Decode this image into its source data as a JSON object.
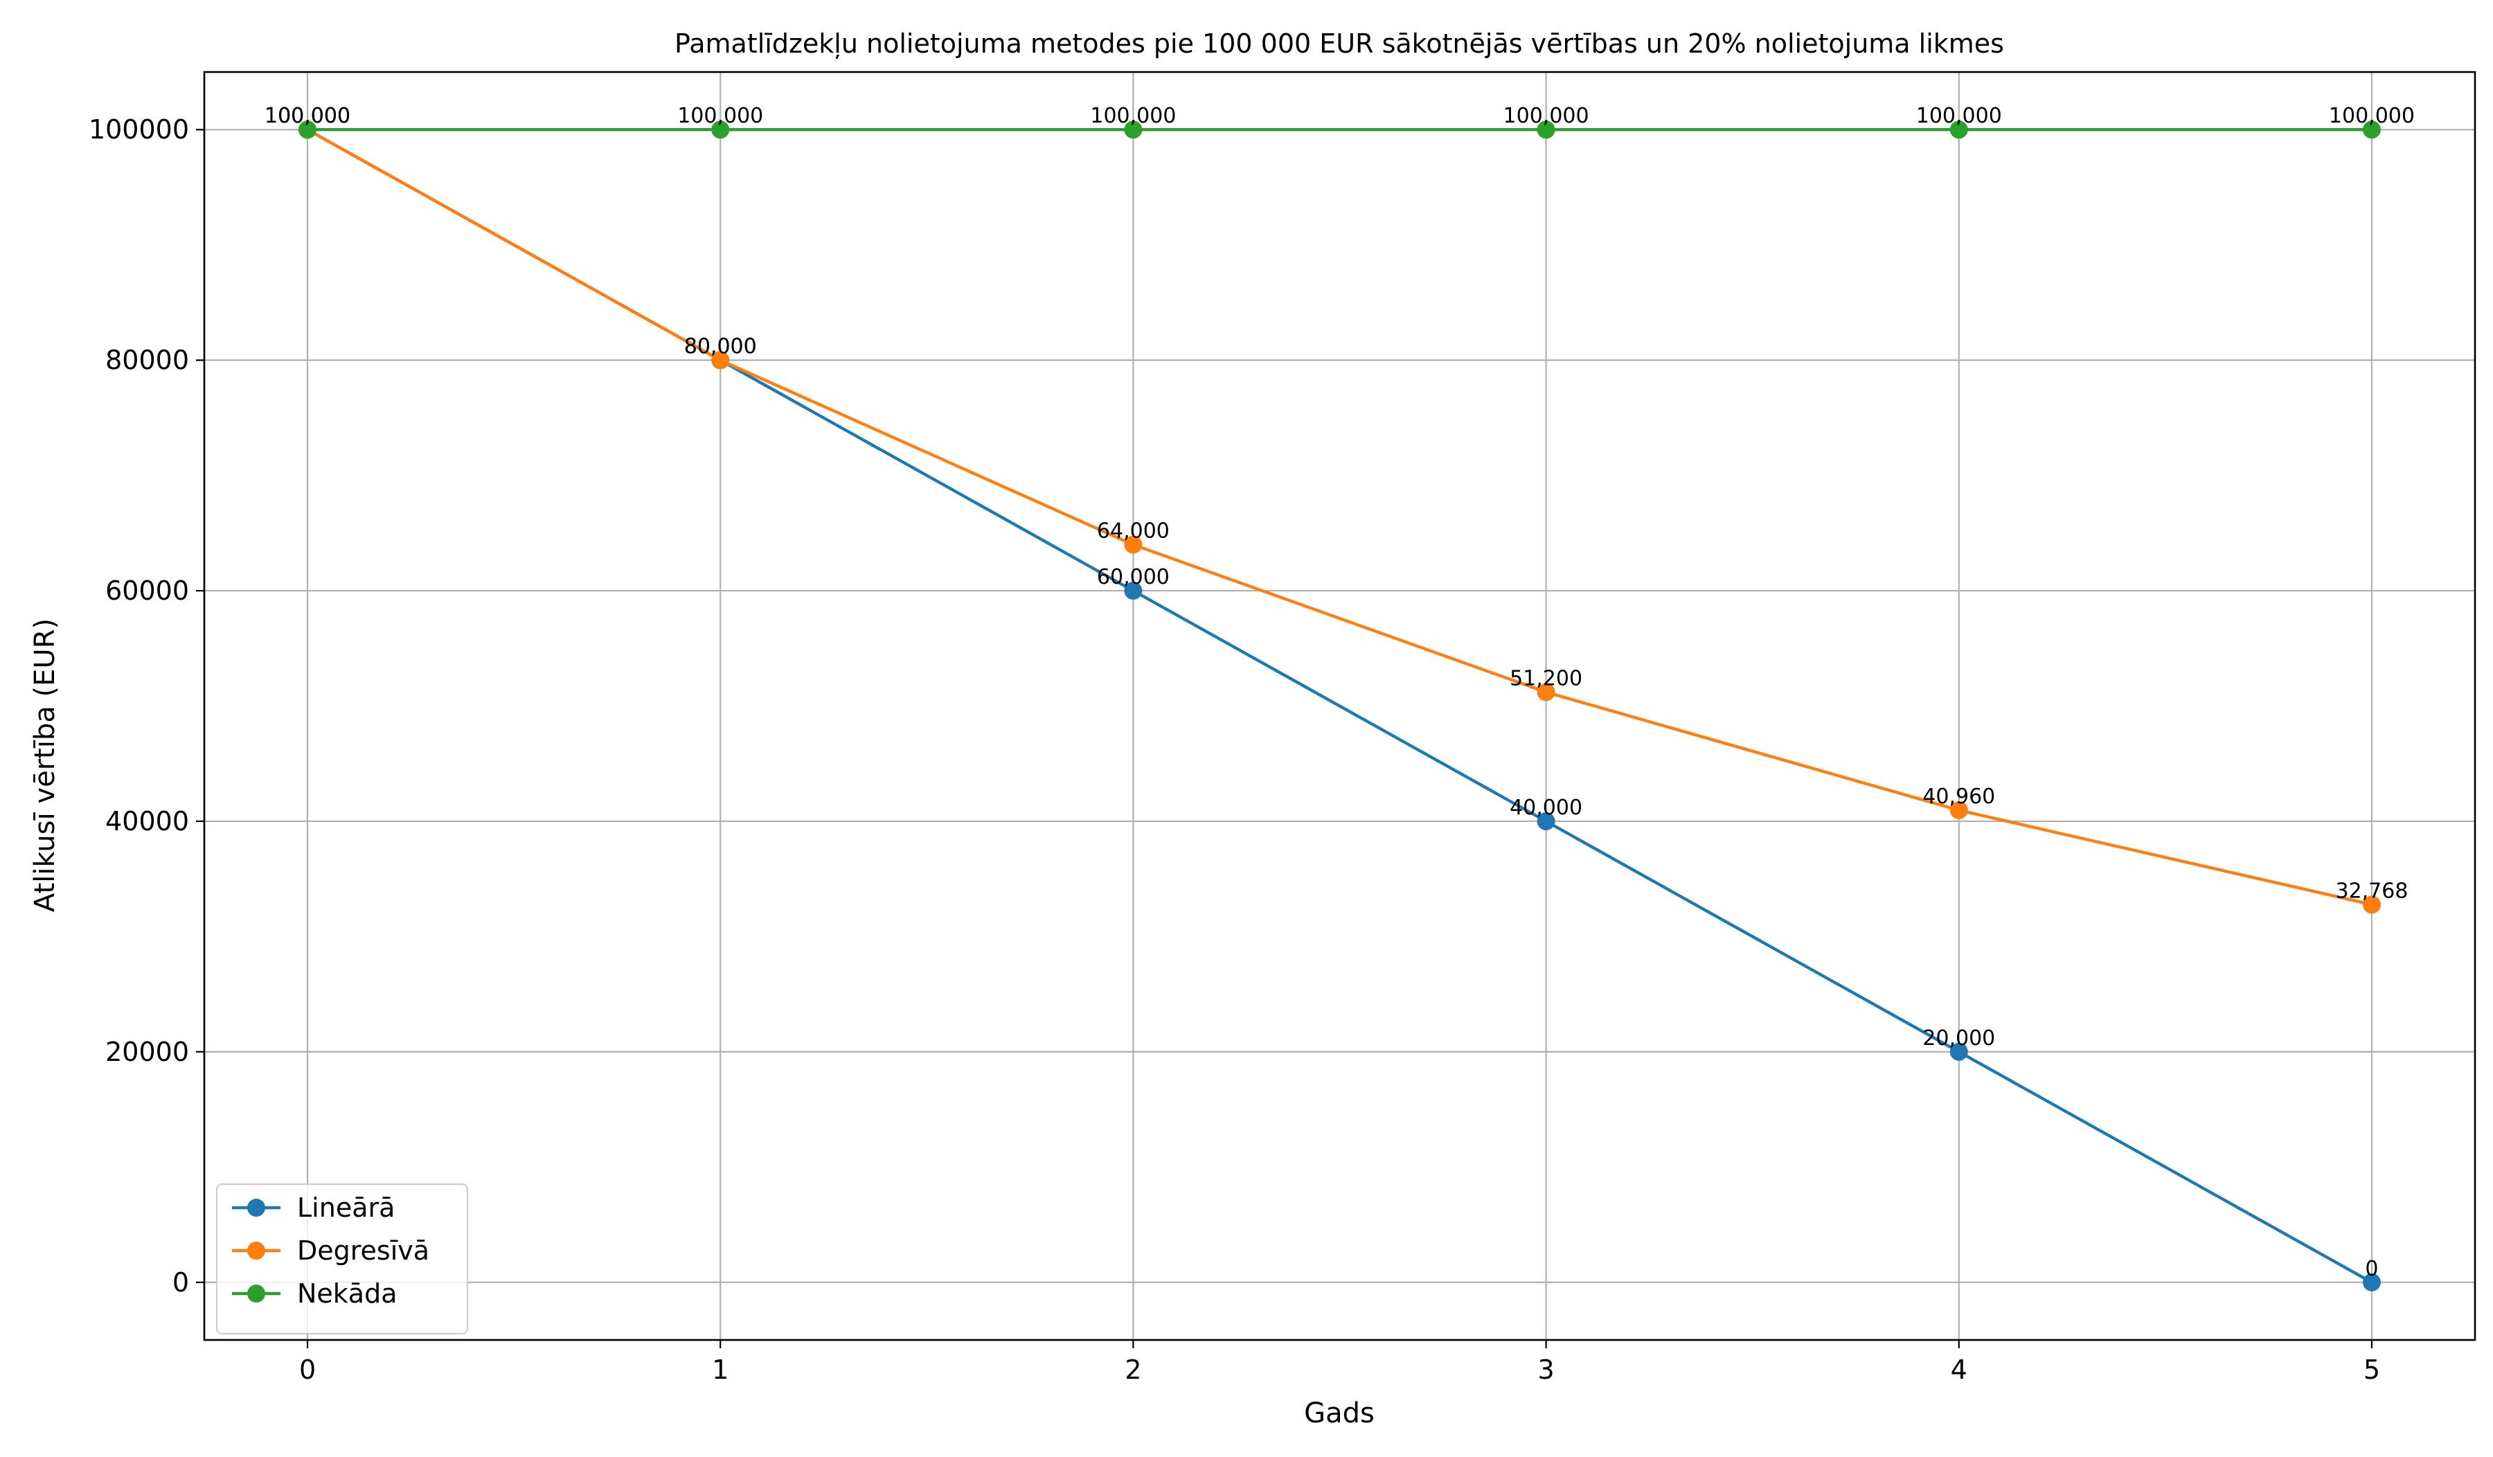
{
  "chart_data": {
    "type": "line",
    "title": "Pamatlīdzekļu nolietojuma metodes pie 100 000 EUR sākotnējās vērtības un 20% nolietojuma likmes",
    "xlabel": "Gads",
    "ylabel": "Atlikusī vērtība (EUR)",
    "x": [
      0,
      1,
      2,
      3,
      4,
      5
    ],
    "x_ticks": [
      "0",
      "1",
      "2",
      "3",
      "4",
      "5"
    ],
    "xlim": [
      -0.25,
      5.25
    ],
    "ylim": [
      -5000,
      105000
    ],
    "y_ticks": [
      0,
      20000,
      40000,
      60000,
      80000,
      100000
    ],
    "y_tick_labels": [
      "0",
      "20000",
      "40000",
      "60000",
      "80000",
      "100000"
    ],
    "grid": true,
    "legend_position": "lower-left",
    "series": [
      {
        "name": "Lineārā",
        "color": "#1f77b4",
        "values": [
          100000,
          80000,
          60000,
          40000,
          20000,
          0
        ],
        "labels": [
          "100,000",
          "80,000",
          "60,000",
          "40,000",
          "20,000",
          "0"
        ]
      },
      {
        "name": "Degresīvā",
        "color": "#ff7f0e",
        "values": [
          100000,
          80000,
          64000,
          51200,
          40960,
          32768
        ],
        "labels": [
          "100,000",
          "80,000",
          "64,000",
          "51,200",
          "40,960",
          "32,768"
        ]
      },
      {
        "name": "Nekāda",
        "color": "#2ca02c",
        "values": [
          100000,
          100000,
          100000,
          100000,
          100000,
          100000
        ],
        "labels": [
          "100,000",
          "100,000",
          "100,000",
          "100,000",
          "100,000",
          "100,000"
        ]
      }
    ]
  }
}
